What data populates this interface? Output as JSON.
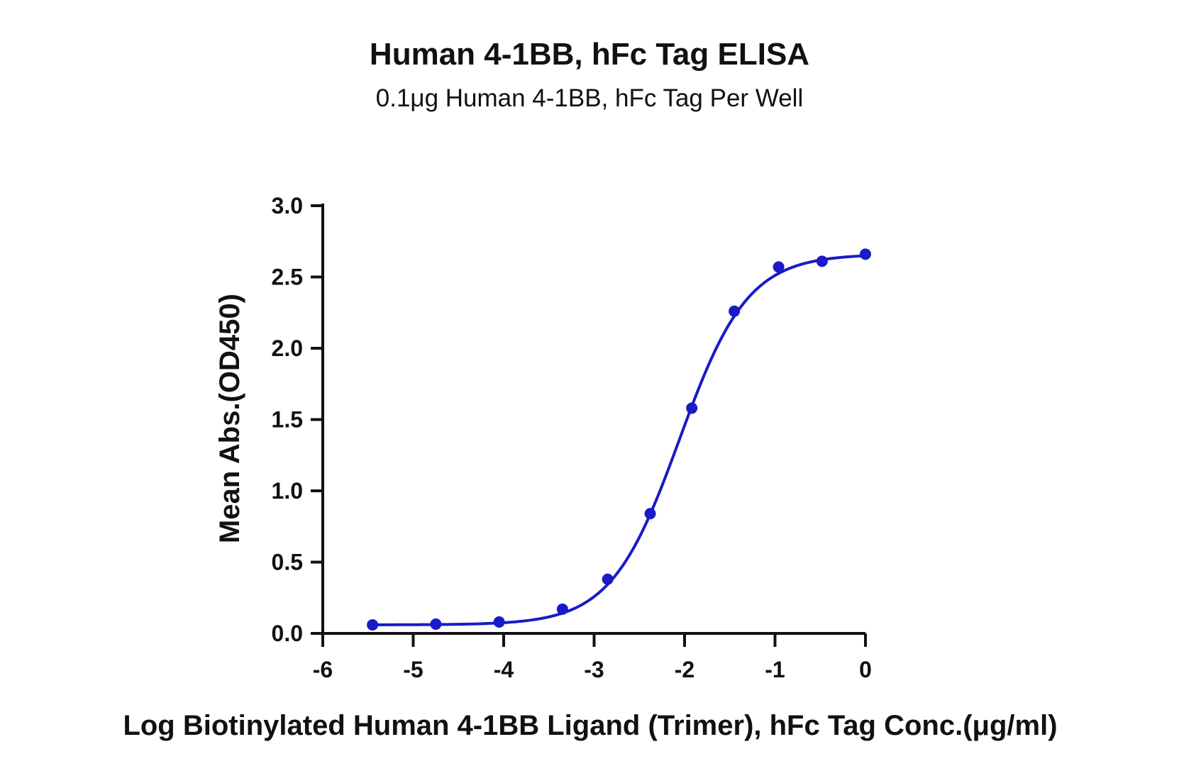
{
  "chart_data": {
    "type": "scatter",
    "title": "Human 4-1BB, hFc Tag ELISA",
    "subtitle": "0.1μg Human 4-1BB, hFc Tag Per Well",
    "xlabel": "Log Biotinylated Human 4-1BB Ligand (Trimer), hFc Tag Conc.(μg/ml)",
    "ylabel": "Mean Abs.(OD450)",
    "xlim": [
      -6,
      0
    ],
    "ylim": [
      0,
      3.0
    ],
    "x_ticks": [
      "-6",
      "-5",
      "-4",
      "-3",
      "-2",
      "-1",
      "0"
    ],
    "y_ticks": [
      "0.0",
      "0.5",
      "1.0",
      "1.5",
      "2.0",
      "2.5",
      "3.0"
    ],
    "grid": false,
    "legend": "none",
    "series": [
      {
        "color": "#1a1ac8",
        "fit": "four-parameter logistic",
        "x": [
          -5.45,
          -4.75,
          -4.05,
          -3.35,
          -2.85,
          -2.38,
          -1.92,
          -1.45,
          -0.96,
          -0.48,
          0.0
        ],
        "y": [
          0.06,
          0.065,
          0.08,
          0.17,
          0.38,
          0.84,
          1.58,
          2.26,
          2.57,
          2.61,
          2.66
        ]
      }
    ]
  }
}
